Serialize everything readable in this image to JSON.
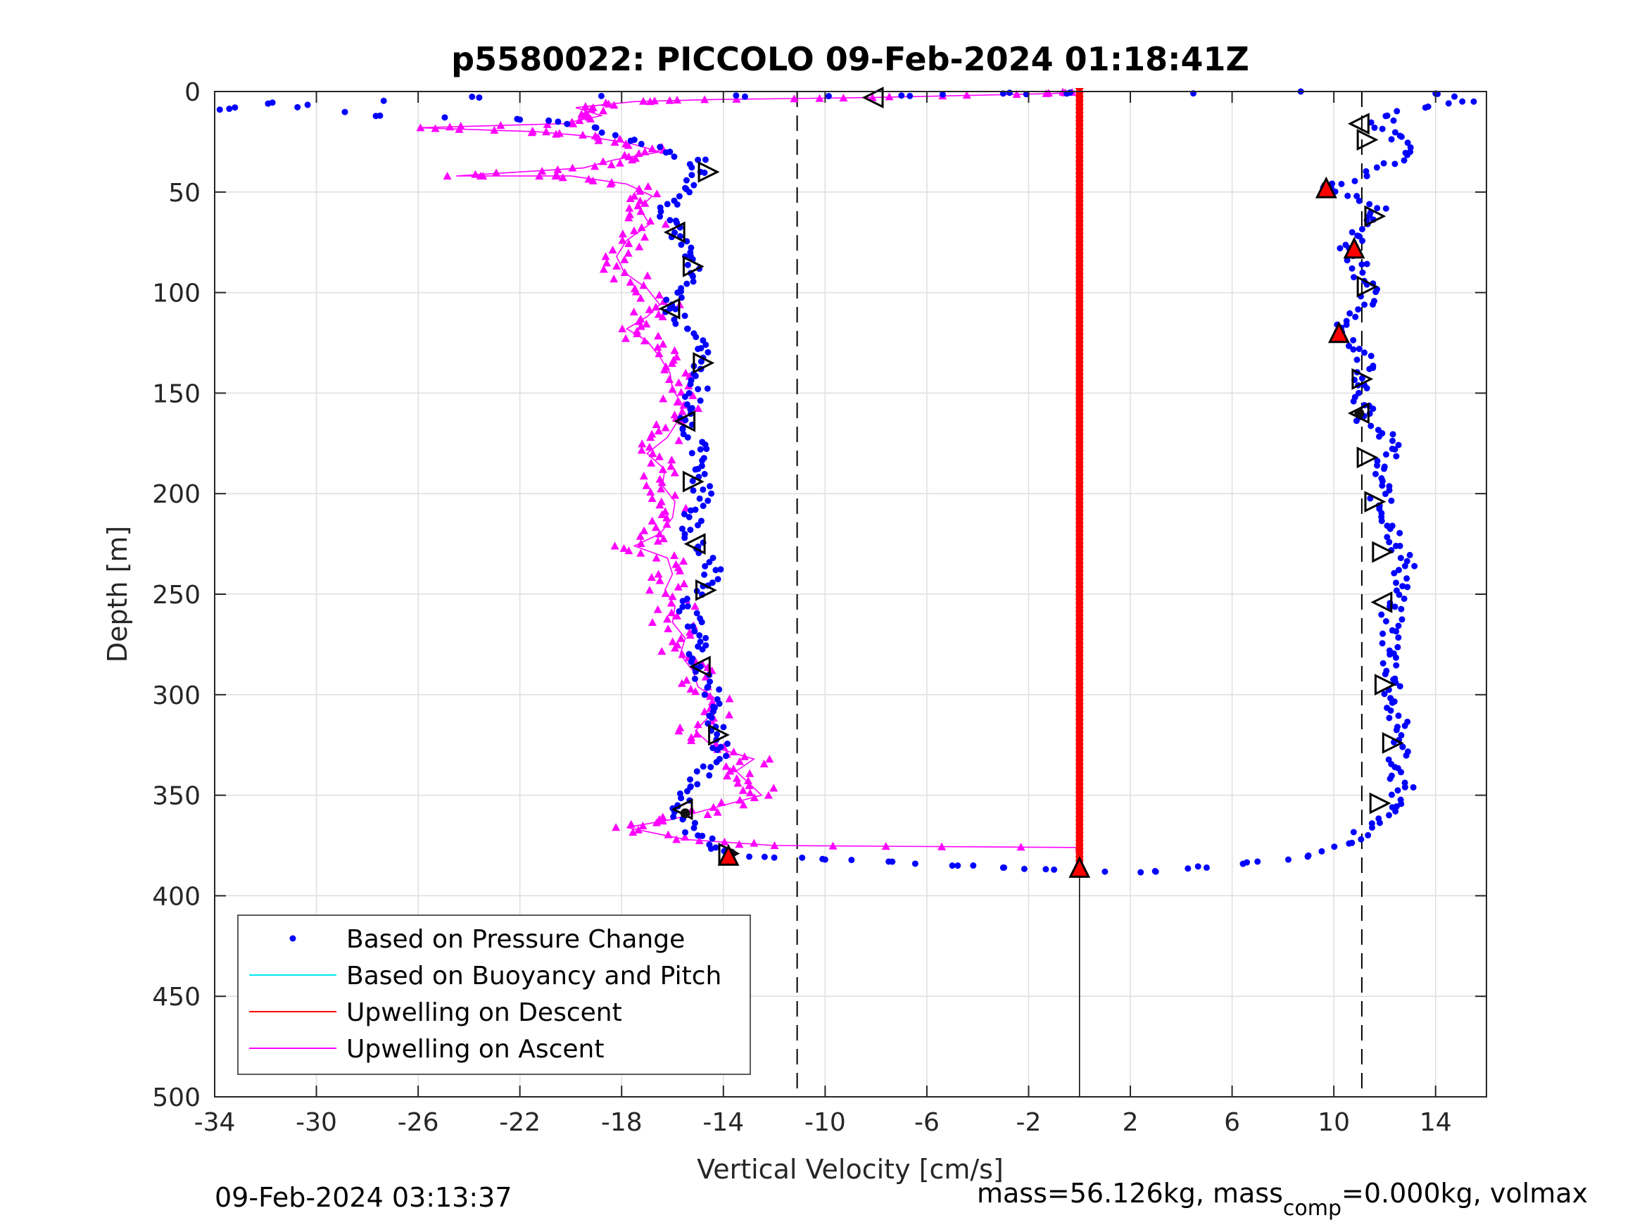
{
  "chart_data": {
    "type": "scatter",
    "title": "p5580022: PICCOLO 09-Feb-2024 01:18:41Z",
    "xlabel": "Vertical Velocity [cm/s]",
    "ylabel": "Depth [m]",
    "xlim": [
      -34,
      16
    ],
    "ylim": [
      0,
      500
    ],
    "y_reversed": true,
    "grid": true,
    "x_ticks": [
      -34,
      -30,
      -26,
      -22,
      -18,
      -14,
      -10,
      -6,
      -2,
      2,
      6,
      10,
      14
    ],
    "x_tick_labels": [
      "-34",
      "-30",
      "-26",
      "-22",
      "-18",
      "-14",
      "-10",
      "-6",
      "-2",
      "2",
      "6",
      "10",
      "14"
    ],
    "y_ticks": [
      0,
      50,
      100,
      150,
      200,
      250,
      300,
      350,
      400,
      450,
      500
    ],
    "y_tick_labels": [
      "0",
      "50",
      "100",
      "150",
      "200",
      "250",
      "300",
      "350",
      "400",
      "450",
      "500"
    ],
    "reference_lines": {
      "dashed_x": [
        -11.1,
        11.1
      ],
      "solid_x": 0
    },
    "legend": {
      "placement": "bottom-left",
      "entries": [
        {
          "label": "Based on Pressure Change",
          "color": "#0000ff",
          "marker": "dot"
        },
        {
          "label": "Based on Buoyancy and Pitch",
          "color": "#00e5ee",
          "marker": "line"
        },
        {
          "label": "Upwelling on Descent",
          "color": "#ff0000",
          "marker": "line"
        },
        {
          "label": "Upwelling on Ascent",
          "color": "#ff00ff",
          "marker": "line"
        }
      ]
    },
    "series": [
      {
        "name": "Based on Pressure Change",
        "color": "#0000ff",
        "descent_profile": [
          [
            14.0,
            1
          ],
          [
            15.5,
            5
          ],
          [
            13.6,
            8
          ],
          [
            12.1,
            12
          ],
          [
            11.6,
            18
          ],
          [
            12.6,
            22
          ],
          [
            13.0,
            30
          ],
          [
            12.4,
            36
          ],
          [
            11.3,
            42
          ],
          [
            10.3,
            46
          ],
          [
            9.9,
            48
          ],
          [
            10.9,
            52
          ],
          [
            11.7,
            58
          ],
          [
            11.3,
            64
          ],
          [
            11.0,
            72
          ],
          [
            10.6,
            78
          ],
          [
            11.1,
            86
          ],
          [
            11.3,
            96
          ],
          [
            11.2,
            106
          ],
          [
            10.5,
            116
          ],
          [
            10.3,
            120
          ],
          [
            11.0,
            128
          ],
          [
            11.4,
            138
          ],
          [
            11.2,
            146
          ],
          [
            11.2,
            156
          ],
          [
            11.0,
            162
          ],
          [
            11.9,
            170
          ],
          [
            12.4,
            178
          ],
          [
            11.7,
            186
          ],
          [
            11.9,
            196
          ],
          [
            11.8,
            206
          ],
          [
            12.3,
            216
          ],
          [
            12.6,
            226
          ],
          [
            12.8,
            236
          ],
          [
            12.7,
            246
          ],
          [
            12.2,
            256
          ],
          [
            12.3,
            268
          ],
          [
            12.2,
            280
          ],
          [
            12.4,
            292
          ],
          [
            12.3,
            304
          ],
          [
            12.5,
            316
          ],
          [
            12.7,
            326
          ],
          [
            12.4,
            336
          ],
          [
            12.8,
            346
          ],
          [
            12.3,
            356
          ],
          [
            11.5,
            364
          ],
          [
            10.6,
            374
          ],
          [
            9.0,
            380
          ],
          [
            7.0,
            383
          ],
          [
            5.0,
            386
          ],
          [
            3.0,
            388
          ],
          [
            1.0,
            388
          ]
        ],
        "ascent_profile": [
          [
            -1.0,
            387
          ],
          [
            -3.0,
            386
          ],
          [
            -5.0,
            385
          ],
          [
            -7.5,
            383
          ],
          [
            -10.0,
            382
          ],
          [
            -12.0,
            381
          ],
          [
            -13.6,
            379
          ],
          [
            -14.3,
            376
          ],
          [
            -15.0,
            370
          ],
          [
            -15.6,
            362
          ],
          [
            -15.8,
            355
          ],
          [
            -15.3,
            346
          ],
          [
            -14.5,
            336
          ],
          [
            -14.1,
            326
          ],
          [
            -14.3,
            316
          ],
          [
            -14.4,
            306
          ],
          [
            -14.6,
            296
          ],
          [
            -14.9,
            286
          ],
          [
            -15.0,
            276
          ],
          [
            -15.2,
            266
          ],
          [
            -15.4,
            256
          ],
          [
            -14.8,
            246
          ],
          [
            -14.3,
            238
          ],
          [
            -15.0,
            228
          ],
          [
            -15.3,
            218
          ],
          [
            -15.1,
            208
          ],
          [
            -14.8,
            198
          ],
          [
            -15.1,
            188
          ],
          [
            -14.9,
            178
          ],
          [
            -15.6,
            168
          ],
          [
            -15.3,
            158
          ],
          [
            -15.0,
            148
          ],
          [
            -14.9,
            138
          ],
          [
            -15.0,
            128
          ],
          [
            -15.4,
            118
          ],
          [
            -16.1,
            108
          ],
          [
            -15.8,
            100
          ],
          [
            -15.2,
            92
          ],
          [
            -15.5,
            82
          ],
          [
            -15.7,
            72
          ],
          [
            -16.1,
            64
          ],
          [
            -16.2,
            56
          ],
          [
            -15.5,
            48
          ],
          [
            -14.9,
            40
          ],
          [
            -15.0,
            34
          ],
          [
            -16.1,
            30
          ],
          [
            -17.5,
            24
          ],
          [
            -19.0,
            18
          ],
          [
            -20.5,
            15
          ],
          [
            -22.0,
            14
          ],
          [
            -27.5,
            12
          ],
          [
            -31.9,
            6
          ],
          [
            -33.8,
            9
          ],
          [
            -23.6,
            3
          ],
          [
            -13.5,
            2
          ],
          [
            -7.0,
            2
          ],
          [
            -3.0,
            1
          ],
          [
            -0.5,
            1
          ],
          [
            8.7,
            0
          ]
        ]
      },
      {
        "name": "Upwelling on Descent",
        "color": "#ff0000",
        "profile": [
          [
            0,
            0
          ],
          [
            0,
            386
          ]
        ]
      },
      {
        "name": "Upwelling on Ascent",
        "color": "#ff00ff",
        "profile": [
          [
            0,
            376
          ],
          [
            -12.0,
            375
          ],
          [
            -15.5,
            372
          ],
          [
            -17.8,
            366
          ],
          [
            -16.0,
            362
          ],
          [
            -14.3,
            356
          ],
          [
            -12.5,
            350
          ],
          [
            -13.0,
            344
          ],
          [
            -13.5,
            338
          ],
          [
            -12.8,
            332
          ],
          [
            -14.4,
            326
          ],
          [
            -15.1,
            318
          ],
          [
            -14.5,
            310
          ],
          [
            -14.3,
            302
          ],
          [
            -15.0,
            296
          ],
          [
            -15.2,
            288
          ],
          [
            -15.7,
            280
          ],
          [
            -15.5,
            272
          ],
          [
            -16.0,
            264
          ],
          [
            -15.9,
            256
          ],
          [
            -16.3,
            248
          ],
          [
            -16.0,
            240
          ],
          [
            -16.2,
            232
          ],
          [
            -17.5,
            226
          ],
          [
            -16.5,
            220
          ],
          [
            -16.0,
            212
          ],
          [
            -15.9,
            204
          ],
          [
            -16.4,
            196
          ],
          [
            -16.3,
            188
          ],
          [
            -17.0,
            180
          ],
          [
            -16.2,
            172
          ],
          [
            -15.8,
            164
          ],
          [
            -15.6,
            156
          ],
          [
            -16.0,
            148
          ],
          [
            -16.1,
            140
          ],
          [
            -16.5,
            132
          ],
          [
            -17.0,
            124
          ],
          [
            -17.8,
            118
          ],
          [
            -17.0,
            112
          ],
          [
            -16.5,
            106
          ],
          [
            -17.0,
            98
          ],
          [
            -17.9,
            90
          ],
          [
            -18.2,
            82
          ],
          [
            -17.8,
            74
          ],
          [
            -16.9,
            66
          ],
          [
            -17.3,
            58
          ],
          [
            -16.8,
            52
          ],
          [
            -17.8,
            46
          ],
          [
            -20.0,
            42
          ],
          [
            -24.5,
            42
          ],
          [
            -19.5,
            38
          ],
          [
            -18.3,
            34
          ],
          [
            -16.5,
            30
          ],
          [
            -17.6,
            26
          ],
          [
            -19.5,
            22
          ],
          [
            -21.3,
            20
          ],
          [
            -26.0,
            18
          ],
          [
            -20.3,
            16
          ],
          [
            -18.8,
            12
          ],
          [
            -19.8,
            8
          ],
          [
            -17.5,
            5
          ],
          [
            -14.5,
            4
          ],
          [
            -8.2,
            3
          ],
          [
            -1.0,
            1
          ],
          [
            0,
            0
          ]
        ]
      }
    ],
    "markers": {
      "hollow_triangles": [
        [
          -8.1,
          3,
          "left"
        ],
        [
          11.0,
          16,
          "left"
        ],
        [
          11.3,
          24,
          "right"
        ],
        [
          -14.6,
          40,
          "right"
        ],
        [
          11.6,
          62,
          "right"
        ],
        [
          -15.9,
          70,
          "left"
        ],
        [
          -15.2,
          87,
          "right"
        ],
        [
          11.3,
          97,
          "right"
        ],
        [
          -16.1,
          108,
          "left"
        ],
        [
          -14.8,
          135,
          "right"
        ],
        [
          11.1,
          143,
          "right"
        ],
        [
          11.0,
          160,
          "left"
        ],
        [
          -15.5,
          164,
          "left"
        ],
        [
          11.3,
          182,
          "right"
        ],
        [
          -15.2,
          194,
          "right"
        ],
        [
          11.6,
          204,
          "right"
        ],
        [
          -15.1,
          225,
          "left"
        ],
        [
          11.9,
          229,
          "right"
        ],
        [
          -14.7,
          248,
          "right"
        ],
        [
          11.9,
          254,
          "left"
        ],
        [
          -14.9,
          286,
          "left"
        ],
        [
          12.0,
          295,
          "right"
        ],
        [
          -14.2,
          320,
          "right"
        ],
        [
          12.3,
          324,
          "right"
        ],
        [
          11.8,
          354,
          "right"
        ],
        [
          -15.6,
          357,
          "left"
        ],
        [
          -13.8,
          379,
          "right"
        ]
      ],
      "filled_triangles": [
        [
          9.7,
          48
        ],
        [
          10.8,
          78
        ],
        [
          10.2,
          120
        ],
        [
          -13.8,
          380
        ],
        [
          0,
          386
        ]
      ],
      "dark_markers": [
        [
          9.7,
          47
        ],
        [
          -15.5,
          359
        ],
        [
          -13.7,
          379
        ],
        [
          11.0,
          160
        ]
      ]
    }
  },
  "footer": {
    "timestamp": "09-Feb-2024 03:13:37",
    "mass_text": "mass=56.126kg, mass",
    "mass_sub": "comp",
    "mass_tail": "=0.000kg, volmax"
  }
}
